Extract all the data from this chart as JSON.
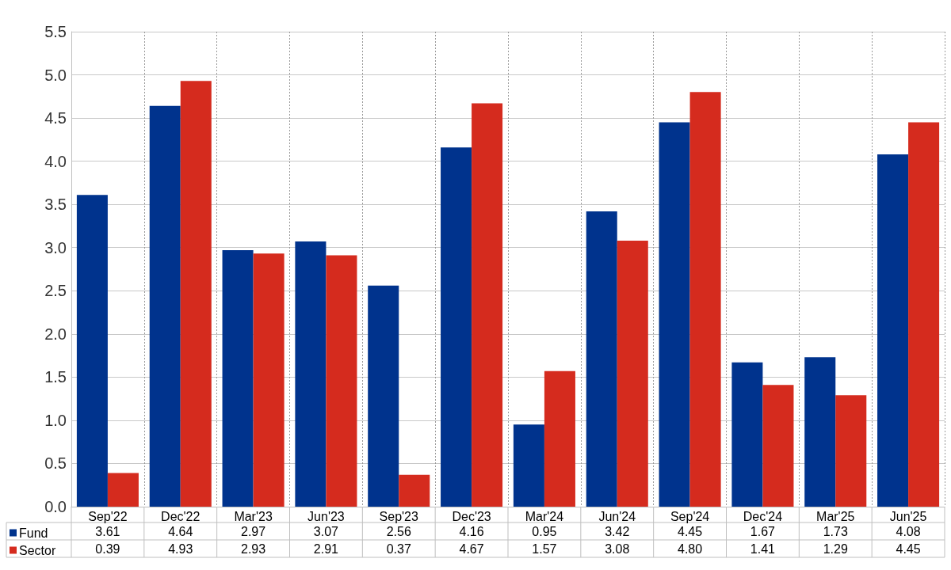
{
  "chart_data": {
    "type": "bar",
    "categories": [
      "Sep'22",
      "Dec'22",
      "Mar'23",
      "Jun'23",
      "Sep'23",
      "Dec'23",
      "Mar'24",
      "Jun'24",
      "Sep'24",
      "Dec'24",
      "Mar'25",
      "Jun'25"
    ],
    "series": [
      {
        "name": "Fund",
        "color": "#00338d",
        "values": [
          3.61,
          4.64,
          2.97,
          3.07,
          2.56,
          4.16,
          0.95,
          3.42,
          4.45,
          1.67,
          1.73,
          4.08
        ],
        "value_labels": [
          "3.61",
          "4.64",
          "2.97",
          "3.07",
          "2.56",
          "4.16",
          "0.95",
          "3.42",
          "4.45",
          "1.67",
          "1.73",
          "4.08"
        ]
      },
      {
        "name": "Sector",
        "color": "#d52b1e",
        "values": [
          0.39,
          4.93,
          2.93,
          2.91,
          0.37,
          4.67,
          1.57,
          3.08,
          4.8,
          1.41,
          1.29,
          4.45
        ],
        "value_labels": [
          "0.39",
          "4.93",
          "2.93",
          "2.91",
          "0.37",
          "4.67",
          "1.57",
          "3.08",
          "4.80",
          "1.41",
          "1.29",
          "4.45"
        ]
      }
    ],
    "ylim": [
      0,
      5.5
    ],
    "yticks": [
      {
        "value": 0,
        "label": "0.0"
      },
      {
        "value": 0.5,
        "label": "0.5"
      },
      {
        "value": 1,
        "label": "1.0"
      },
      {
        "value": 1.5,
        "label": "1.5"
      },
      {
        "value": 2,
        "label": "2.0"
      },
      {
        "value": 2.5,
        "label": "2.5"
      },
      {
        "value": 3,
        "label": "3.0"
      },
      {
        "value": 3.5,
        "label": "3.5"
      },
      {
        "value": 4,
        "label": "4.0"
      },
      {
        "value": 4.5,
        "label": "4.5"
      },
      {
        "value": 5,
        "label": "5.0"
      },
      {
        "value": 5.5,
        "label": "5.5"
      }
    ],
    "grid": true,
    "legend": "bottom left"
  }
}
